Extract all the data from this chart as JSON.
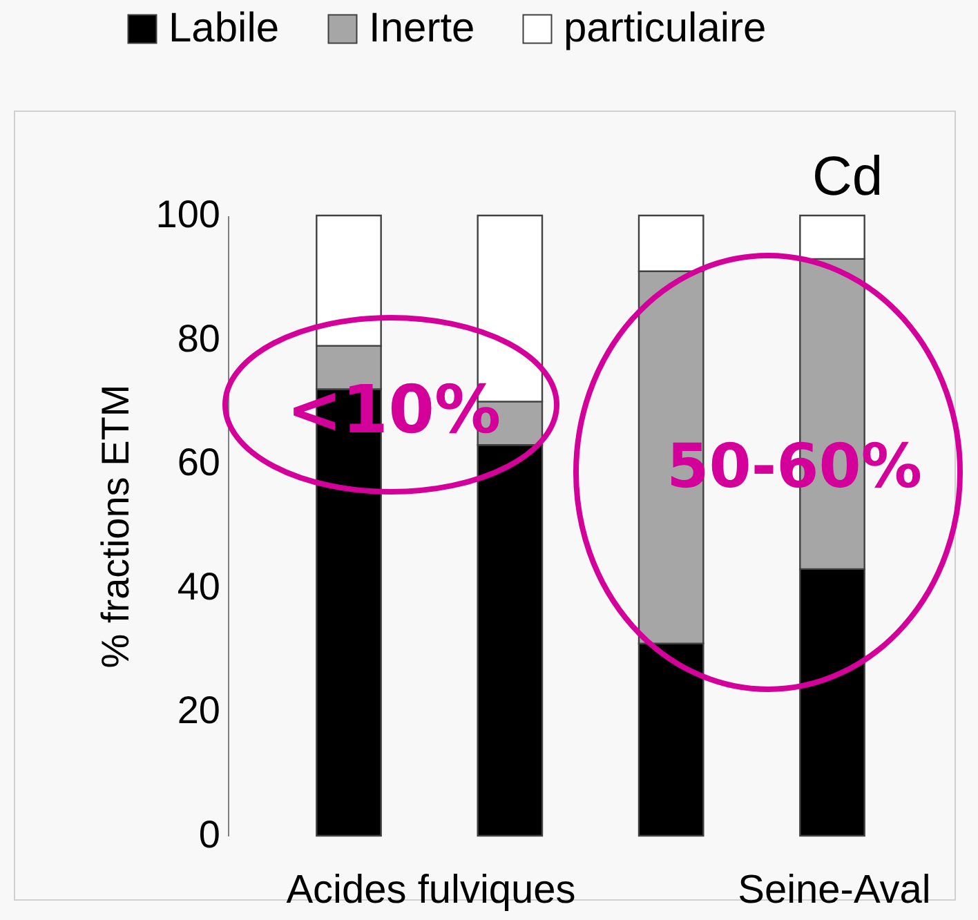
{
  "chart_data": {
    "type": "bar",
    "title": "Cd",
    "ylabel": "% fractions ETM",
    "categories": [
      null,
      null,
      null,
      null
    ],
    "stacked": true,
    "legend": "top",
    "ylim": [
      0,
      100
    ],
    "yticks": [
      0,
      20,
      40,
      60,
      80,
      100
    ],
    "grid": false,
    "series": [
      {
        "name": "Labile",
        "color": "#000000",
        "values": [
          72,
          63,
          31,
          43
        ]
      },
      {
        "name": "Inerte",
        "color": "#a6a6a6",
        "values": [
          7,
          7,
          60,
          50
        ]
      },
      {
        "name": "particulaire",
        "color": "#ffffff",
        "values": [
          21,
          30,
          9,
          7
        ]
      }
    ],
    "annotations": [
      "<10%",
      "50-60%",
      "Acides fulviques",
      "Seine-Aval"
    ]
  }
}
